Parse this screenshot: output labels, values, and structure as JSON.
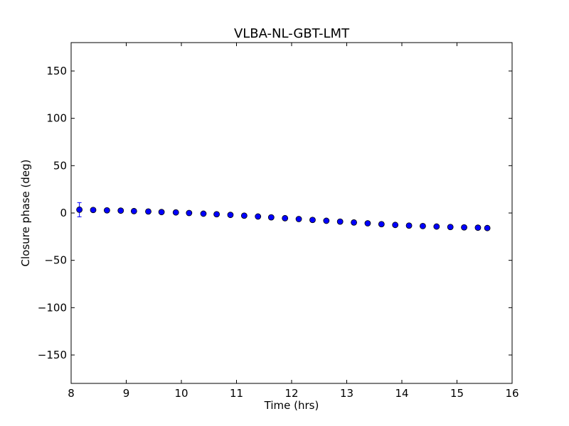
{
  "chart_data": {
    "type": "scatter",
    "title": "VLBA-NL-GBT-LMT",
    "xlabel": "Time (hrs)",
    "ylabel": "Closure phase (deg)",
    "xlim": [
      8,
      16
    ],
    "ylim": [
      -180,
      180
    ],
    "xticks": [
      "8",
      "9",
      "10",
      "11",
      "12",
      "13",
      "14",
      "15",
      "16"
    ],
    "yticks": [
      "−150",
      "−100",
      "−50",
      "0",
      "50",
      "100",
      "150"
    ],
    "grid": false,
    "marker_color": "#0000ff",
    "series": [
      {
        "x": [
          8.15,
          8.4,
          8.65,
          8.9,
          9.14,
          9.4,
          9.64,
          9.9,
          10.14,
          10.4,
          10.64,
          10.89,
          11.14,
          11.39,
          11.63,
          11.88,
          12.13,
          12.38,
          12.63,
          12.88,
          13.13,
          13.38,
          13.63,
          13.88,
          14.13,
          14.38,
          14.63,
          14.88,
          15.13,
          15.38,
          15.55
        ],
        "y": [
          3.5,
          3.2,
          2.8,
          2.5,
          2.0,
          1.6,
          1.0,
          0.6,
          0.0,
          -0.7,
          -1.3,
          -2.0,
          -2.8,
          -3.7,
          -4.6,
          -5.5,
          -6.4,
          -7.3,
          -8.2,
          -9.1,
          -10.0,
          -10.9,
          -11.8,
          -12.6,
          -13.3,
          -13.8,
          -14.3,
          -14.8,
          -15.2,
          -15.5,
          -15.9
        ],
        "yerr": [
          7.5,
          1.5,
          1.2,
          1.2,
          1.2,
          1.2,
          1.2,
          1.2,
          1.2,
          1.2,
          1.2,
          1.2,
          1.2,
          1.2,
          1.2,
          1.2,
          1.2,
          1.2,
          1.2,
          1.2,
          1.2,
          1.2,
          1.2,
          1.2,
          1.2,
          1.2,
          1.2,
          1.2,
          1.2,
          1.2,
          1.2
        ]
      }
    ]
  }
}
